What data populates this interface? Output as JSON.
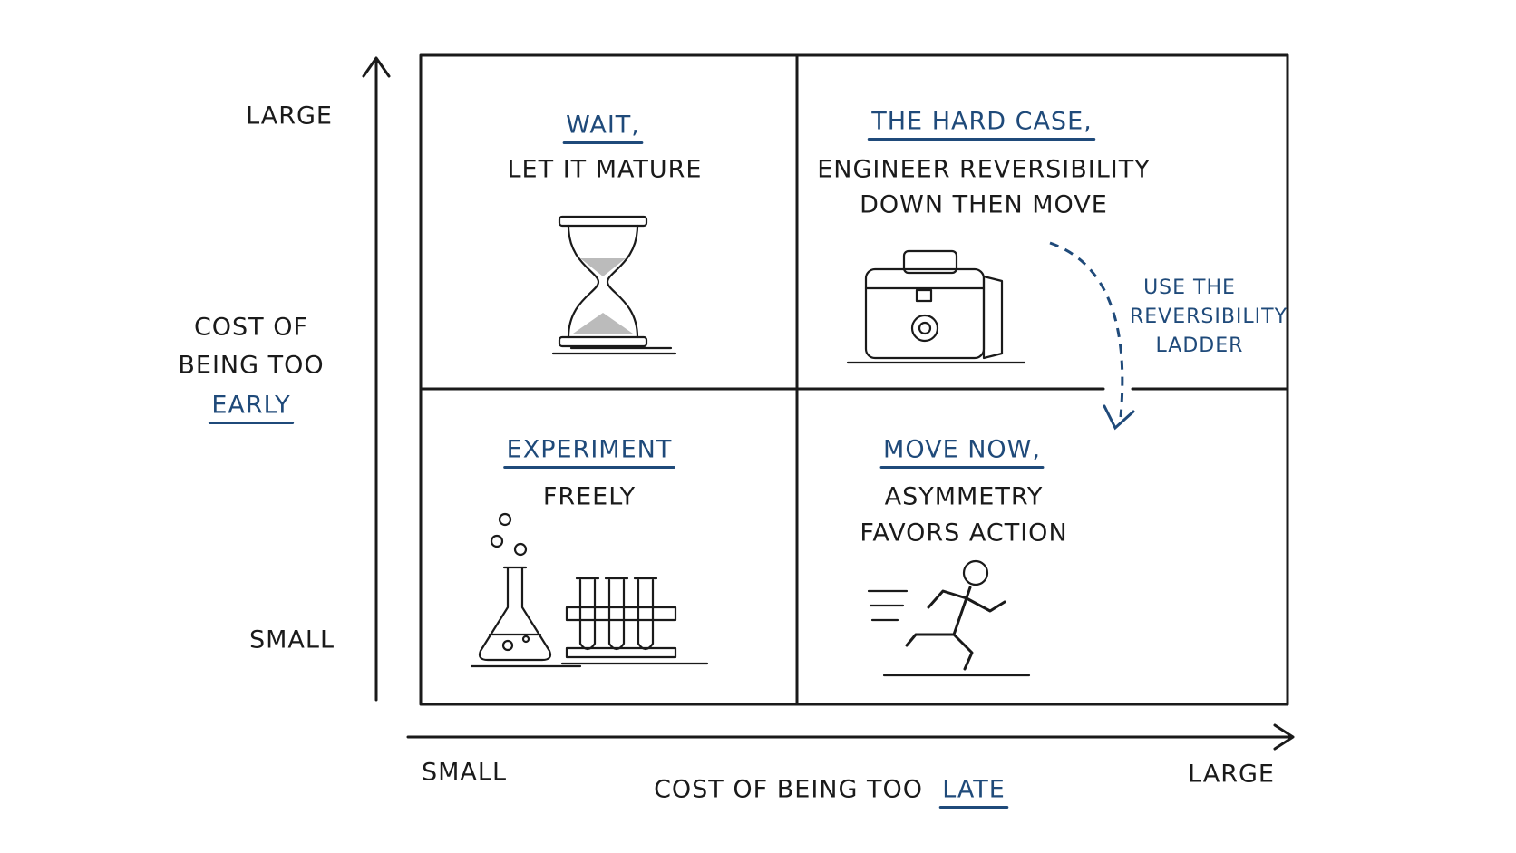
{
  "y_axis": {
    "high": "LARGE",
    "low": "SMALL",
    "label_lines": [
      "COST OF",
      "BEING TOO"
    ],
    "label_emphasis": "EARLY"
  },
  "x_axis": {
    "low": "SMALL",
    "high": "LARGE",
    "label": "COST OF BEING TOO",
    "label_emphasis": "LATE"
  },
  "quadrants": [
    {
      "title": "WAIT,",
      "subtitle": [
        "LET IT MATURE"
      ]
    },
    {
      "title": "THE HARD CASE,",
      "subtitle": [
        "ENGINEER REVERSIBILITY",
        "DOWN THEN MOVE"
      ]
    },
    {
      "title": "EXPERIMENT",
      "subtitle": [
        "FREELY"
      ]
    },
    {
      "title": "MOVE NOW,",
      "subtitle": [
        "ASYMMETRY",
        "FAVORS ACTION"
      ]
    }
  ],
  "annotation": [
    "USE THE",
    "REVERSIBILITY",
    "LADDER"
  ]
}
